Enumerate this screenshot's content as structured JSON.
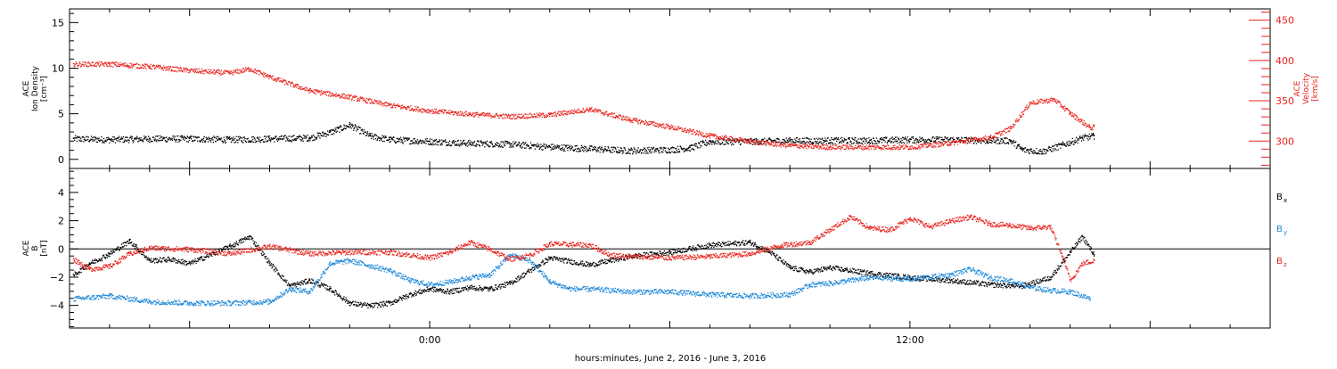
{
  "footer_label": "hours:minutes, June  2, 2016 - June  3, 2016",
  "colors": {
    "black": "#000000",
    "red": "#e8221c",
    "blue": "#1e88d8",
    "axis": "#000000"
  },
  "chart_data": [
    {
      "type": "scatter",
      "panel": "top",
      "left_axis": {
        "label_lines": [
          "ACE",
          "Ion Density",
          "[cm⁻³]"
        ],
        "ylim": [
          -1,
          16.5
        ],
        "ticks": [
          0,
          5,
          10,
          15
        ],
        "tick_labels": [
          "0",
          "5",
          "10",
          "15"
        ]
      },
      "right_axis": {
        "label_lines": [
          "ACE",
          "Velocity",
          "[km/s]"
        ],
        "ylim": [
          266,
          464
        ],
        "ticks": [
          300,
          350,
          400,
          450
        ],
        "tick_labels": [
          "300",
          "350",
          "400",
          "450"
        ],
        "color": "#e8221c"
      },
      "x": {
        "range_hours": [
          -9.0,
          21.0
        ],
        "ticks": [
          0,
          12
        ],
        "tick_labels": [
          "0:00",
          "12:00"
        ]
      },
      "series": [
        {
          "axis": "left",
          "color": "#000000",
          "points": [
            [
              -8.9,
              2.3
            ],
            [
              -8,
              2.2
            ],
            [
              -7,
              2.3
            ],
            [
              -6,
              2.3
            ],
            [
              -5,
              2.2
            ],
            [
              -4,
              2.3
            ],
            [
              -3,
              2.4
            ],
            [
              -2.5,
              3.0
            ],
            [
              -2,
              3.8
            ],
            [
              -1.5,
              2.6
            ],
            [
              -1,
              2.2
            ],
            [
              0,
              2.0
            ],
            [
              1,
              1.8
            ],
            [
              2,
              1.7
            ],
            [
              3,
              1.4
            ],
            [
              4,
              1.2
            ],
            [
              5,
              1.0
            ],
            [
              6,
              1.1
            ],
            [
              6.5,
              1.3
            ],
            [
              7,
              2.0
            ],
            [
              8,
              2.0
            ],
            [
              9,
              2.1
            ],
            [
              10,
              2.1
            ],
            [
              11,
              2.1
            ],
            [
              12,
              2.2
            ],
            [
              13,
              2.2
            ],
            [
              14,
              2.1
            ],
            [
              14.5,
              2.1
            ],
            [
              14.8,
              1.1
            ],
            [
              15.3,
              0.9
            ],
            [
              15.8,
              1.6
            ],
            [
              16.3,
              2.4
            ],
            [
              16.6,
              2.6
            ]
          ]
        },
        {
          "axis": "right",
          "color": "#e8221c",
          "points": [
            [
              -8.9,
              396
            ],
            [
              -8,
              396
            ],
            [
              -7,
              393
            ],
            [
              -6,
              388
            ],
            [
              -5,
              385
            ],
            [
              -4.5,
              390
            ],
            [
              -4,
              380
            ],
            [
              -3,
              363
            ],
            [
              -2,
              355
            ],
            [
              -1,
              345
            ],
            [
              0,
              338
            ],
            [
              1,
              334
            ],
            [
              2,
              331
            ],
            [
              3,
              333
            ],
            [
              4,
              340
            ],
            [
              5,
              327
            ],
            [
              6,
              318
            ],
            [
              7,
              307
            ],
            [
              8,
              300
            ],
            [
              9,
              295
            ],
            [
              10,
              293
            ],
            [
              11,
              293
            ],
            [
              12,
              293
            ],
            [
              13,
              298
            ],
            [
              14,
              305
            ],
            [
              14.5,
              316
            ],
            [
              15,
              348
            ],
            [
              15.6,
              352
            ],
            [
              16,
              335
            ],
            [
              16.5,
              317
            ],
            [
              16.6,
              318
            ]
          ]
        }
      ]
    },
    {
      "type": "scatter",
      "panel": "bottom",
      "left_axis": {
        "label_lines": [
          "ACE",
          "B",
          "[nT]"
        ],
        "ylim": [
          -5.6,
          5.7
        ],
        "ticks": [
          -4,
          -2,
          0,
          2,
          4
        ],
        "tick_labels": [
          "−4",
          "−2",
          "0",
          "2",
          "4"
        ]
      },
      "x": {
        "range_hours": [
          -9.0,
          21.0
        ],
        "ticks": [
          0,
          12
        ],
        "tick_labels": [
          "0:00",
          "12:00"
        ]
      },
      "zero_line": 0,
      "series": [
        {
          "name": "Bx",
          "name_main": "B",
          "name_sub": "x",
          "color": "#000000",
          "points": [
            [
              -8.9,
              -1.8
            ],
            [
              -8.5,
              -1.0
            ],
            [
              -8,
              -0.3
            ],
            [
              -7.5,
              0.6
            ],
            [
              -7,
              -0.8
            ],
            [
              -6.5,
              -0.7
            ],
            [
              -6,
              -1.0
            ],
            [
              -5,
              0.2
            ],
            [
              -4.5,
              0.9
            ],
            [
              -4,
              -1.0
            ],
            [
              -3.5,
              -2.6
            ],
            [
              -3,
              -2.2
            ],
            [
              -2.5,
              -2.8
            ],
            [
              -2,
              -3.8
            ],
            [
              -1.5,
              -4.0
            ],
            [
              -1,
              -3.8
            ],
            [
              -0.5,
              -3.2
            ],
            [
              0,
              -2.8
            ],
            [
              0.5,
              -3.0
            ],
            [
              1,
              -2.7
            ],
            [
              1.5,
              -2.8
            ],
            [
              2,
              -2.4
            ],
            [
              3,
              -0.6
            ],
            [
              4,
              -1.1
            ],
            [
              4.5,
              -0.8
            ],
            [
              5,
              -0.5
            ],
            [
              6,
              -0.2
            ],
            [
              7,
              0.3
            ],
            [
              8,
              0.5
            ],
            [
              8.5,
              -0.2
            ],
            [
              9,
              -1.3
            ],
            [
              9.5,
              -1.6
            ],
            [
              10,
              -1.3
            ],
            [
              11,
              -1.7
            ],
            [
              12,
              -2.0
            ],
            [
              13,
              -2.2
            ],
            [
              14,
              -2.5
            ],
            [
              14.8,
              -2.6
            ],
            [
              15.5,
              -2.0
            ],
            [
              16,
              -0.2
            ],
            [
              16.3,
              0.9
            ],
            [
              16.6,
              -0.4
            ]
          ]
        },
        {
          "name": "By",
          "name_main": "B",
          "name_sub": "y",
          "color": "#1e88d8",
          "points": [
            [
              -8.9,
              -3.5
            ],
            [
              -8,
              -3.3
            ],
            [
              -7,
              -3.7
            ],
            [
              -6,
              -3.8
            ],
            [
              -5,
              -3.8
            ],
            [
              -4,
              -3.7
            ],
            [
              -3.5,
              -2.8
            ],
            [
              -3,
              -3.0
            ],
            [
              -2.5,
              -1.0
            ],
            [
              -2,
              -0.8
            ],
            [
              -1,
              -1.5
            ],
            [
              -0.5,
              -2.2
            ],
            [
              0,
              -2.5
            ],
            [
              0.5,
              -2.3
            ],
            [
              1,
              -2.0
            ],
            [
              1.5,
              -1.8
            ],
            [
              2,
              -0.4
            ],
            [
              2.5,
              -0.8
            ],
            [
              3,
              -2.3
            ],
            [
              3.5,
              -2.8
            ],
            [
              4,
              -2.8
            ],
            [
              5,
              -3.0
            ],
            [
              6,
              -3.0
            ],
            [
              7,
              -3.2
            ],
            [
              8,
              -3.3
            ],
            [
              9,
              -3.2
            ],
            [
              9.5,
              -2.5
            ],
            [
              10,
              -2.4
            ],
            [
              11,
              -2.0
            ],
            [
              12,
              -2.1
            ],
            [
              13,
              -1.8
            ],
            [
              13.5,
              -1.4
            ],
            [
              14,
              -2.0
            ],
            [
              14.5,
              -2.2
            ],
            [
              15,
              -2.7
            ],
            [
              15.5,
              -2.9
            ],
            [
              16,
              -3.0
            ],
            [
              16.5,
              -3.5
            ]
          ]
        },
        {
          "name": "Bz",
          "name_main": "B",
          "name_sub": "z",
          "color": "#e8221c",
          "points": [
            [
              -8.9,
              -0.7
            ],
            [
              -8.5,
              -1.4
            ],
            [
              -8,
              -1.2
            ],
            [
              -7.5,
              -0.3
            ],
            [
              -7,
              0.1
            ],
            [
              -6,
              0.0
            ],
            [
              -5,
              -0.3
            ],
            [
              -4,
              0.2
            ],
            [
              -3,
              -0.3
            ],
            [
              -2,
              -0.2
            ],
            [
              -1,
              -0.2
            ],
            [
              0,
              -0.6
            ],
            [
              0.5,
              -0.2
            ],
            [
              1,
              0.5
            ],
            [
              1.5,
              0.0
            ],
            [
              2,
              -0.7
            ],
            [
              2.5,
              -0.4
            ],
            [
              3,
              0.4
            ],
            [
              4,
              0.3
            ],
            [
              4.5,
              -0.4
            ],
            [
              5,
              -0.5
            ],
            [
              6,
              -0.6
            ],
            [
              7,
              -0.5
            ],
            [
              8,
              -0.3
            ],
            [
              8.8,
              0.3
            ],
            [
              9.5,
              0.5
            ],
            [
              10,
              1.4
            ],
            [
              10.5,
              2.3
            ],
            [
              11,
              1.5
            ],
            [
              11.5,
              1.4
            ],
            [
              12,
              2.2
            ],
            [
              12.5,
              1.6
            ],
            [
              13,
              2.0
            ],
            [
              13.5,
              2.3
            ],
            [
              14,
              1.8
            ],
            [
              14.5,
              1.7
            ],
            [
              15,
              1.5
            ],
            [
              15.5,
              1.6
            ],
            [
              15.8,
              -0.5
            ],
            [
              16,
              -2.2
            ],
            [
              16.3,
              -1.0
            ],
            [
              16.6,
              -0.8
            ]
          ]
        }
      ]
    }
  ]
}
